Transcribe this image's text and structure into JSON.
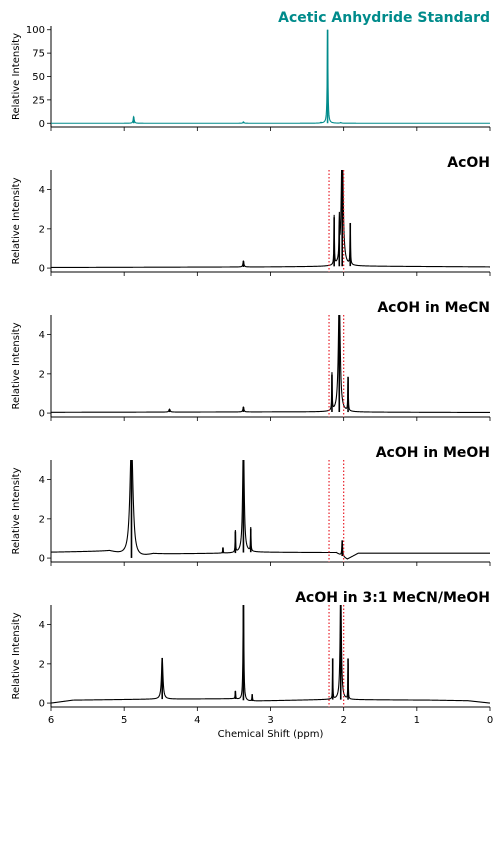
{
  "chart_data": [
    {
      "type": "line",
      "title": "Acetic Anhydride Standard",
      "title_color": "#008b8b",
      "line_color": "#008b8b",
      "ylabel": "Relative Intensity",
      "xlim": [
        6,
        0
      ],
      "ylim": [
        -4,
        104
      ],
      "yticks": [
        0,
        25,
        50,
        75,
        100
      ],
      "xticks": [
        6,
        5,
        4,
        3,
        2,
        1,
        0
      ],
      "show_xticklabels": false,
      "reference_lines": [],
      "baseline": [
        [
          6,
          0
        ],
        [
          0,
          0
        ]
      ],
      "peaks": [
        {
          "x": 4.87,
          "height": 7,
          "width": 0.008
        },
        {
          "x": 3.37,
          "height": 1.5,
          "width": 0.008
        },
        {
          "x": 2.22,
          "height": 100,
          "width": 0.006
        },
        {
          "x": 2.31,
          "height": 0.6,
          "width": 0.006
        },
        {
          "x": 2.04,
          "height": 0.7,
          "width": 0.01
        }
      ]
    },
    {
      "type": "line",
      "title": "AcOH",
      "title_color": "#000000",
      "line_color": "#000000",
      "ylabel": "Relative Intensity",
      "xlim": [
        6,
        0
      ],
      "ylim": [
        -0.2,
        5
      ],
      "yticks": [
        0,
        2,
        4
      ],
      "xticks": [
        6,
        5,
        4,
        3,
        2,
        1,
        0
      ],
      "show_xticklabels": false,
      "reference_lines": [
        2.2,
        2.0
      ],
      "baseline": [
        [
          6,
          0.03
        ],
        [
          3,
          0.06
        ],
        [
          2.3,
          0.08
        ],
        [
          1.9,
          0.1
        ],
        [
          0,
          0.06
        ]
      ],
      "peaks": [
        {
          "x": 3.37,
          "height": 0.3,
          "width": 0.008
        },
        {
          "x": 2.13,
          "height": 2.5,
          "width": 0.004
        },
        {
          "x": 2.02,
          "height": 6.5,
          "width": 0.015
        },
        {
          "x": 2.06,
          "height": 2.1,
          "width": 0.004
        },
        {
          "x": 1.91,
          "height": 2.2,
          "width": 0.004
        }
      ]
    },
    {
      "type": "line",
      "title": "AcOH in MeCN",
      "title_color": "#000000",
      "line_color": "#000000",
      "ylabel": "Relative Intensity",
      "xlim": [
        6,
        0
      ],
      "ylim": [
        -0.2,
        5
      ],
      "yticks": [
        0,
        2,
        4
      ],
      "xticks": [
        6,
        5,
        4,
        3,
        2,
        1,
        0
      ],
      "show_xticklabels": false,
      "reference_lines": [
        2.2,
        2.0
      ],
      "baseline": [
        [
          6,
          0.04
        ],
        [
          3,
          0.06
        ],
        [
          2.3,
          0.06
        ],
        [
          1.9,
          0.05
        ],
        [
          0,
          0.03
        ]
      ],
      "peaks": [
        {
          "x": 4.38,
          "height": 0.15,
          "width": 0.01
        },
        {
          "x": 3.37,
          "height": 0.25,
          "width": 0.008
        },
        {
          "x": 2.16,
          "height": 1.9,
          "width": 0.004
        },
        {
          "x": 2.06,
          "height": 6.0,
          "width": 0.015
        },
        {
          "x": 1.94,
          "height": 1.8,
          "width": 0.004
        }
      ]
    },
    {
      "type": "line",
      "title": "AcOH in MeOH",
      "title_color": "#000000",
      "line_color": "#000000",
      "ylabel": "Relative Intensity",
      "xlim": [
        6,
        0
      ],
      "ylim": [
        -0.2,
        5
      ],
      "yticks": [
        0,
        2,
        4
      ],
      "xticks": [
        6,
        5,
        4,
        3,
        2,
        1,
        0
      ],
      "show_xticklabels": false,
      "reference_lines": [
        2.2,
        2.0
      ],
      "baseline": [
        [
          6,
          0.3
        ],
        [
          5.2,
          0.35
        ],
        [
          4.85,
          -0.05
        ],
        [
          4.6,
          0.2
        ],
        [
          3.5,
          0.25
        ],
        [
          3.3,
          0.3
        ],
        [
          2.1,
          0.28
        ],
        [
          1.95,
          -0.05
        ],
        [
          1.8,
          0.25
        ],
        [
          0.3,
          0.25
        ],
        [
          0,
          0.25
        ]
      ],
      "peaks": [
        {
          "x": 4.9,
          "height": 6.0,
          "width": 0.025
        },
        {
          "x": 3.65,
          "height": 0.3,
          "width": 0.004
        },
        {
          "x": 3.48,
          "height": 1.1,
          "width": 0.004
        },
        {
          "x": 3.37,
          "height": 6.0,
          "width": 0.012
        },
        {
          "x": 3.27,
          "height": 1.2,
          "width": 0.004
        },
        {
          "x": 2.02,
          "height": 0.8,
          "width": 0.006
        }
      ]
    },
    {
      "type": "line",
      "title": "AcOH in 3:1 MeCN/MeOH",
      "title_color": "#000000",
      "line_color": "#000000",
      "ylabel": "Relative Intensity",
      "xlabel": "Chemical Shift (ppm)",
      "xlim": [
        6,
        0
      ],
      "ylim": [
        -0.2,
        5
      ],
      "yticks": [
        0,
        2,
        4
      ],
      "xticks": [
        6,
        5,
        4,
        3,
        2,
        1,
        0
      ],
      "show_xticklabels": true,
      "reference_lines": [
        2.2,
        2.0
      ],
      "baseline": [
        [
          6,
          0.0
        ],
        [
          5.7,
          0.15
        ],
        [
          4.6,
          0.2
        ],
        [
          3.5,
          0.22
        ],
        [
          3.3,
          0.1
        ],
        [
          2.2,
          0.18
        ],
        [
          0.8,
          0.15
        ],
        [
          0.3,
          0.12
        ],
        [
          0,
          0.0
        ]
      ],
      "peaks": [
        {
          "x": 4.48,
          "height": 2.1,
          "width": 0.012
        },
        {
          "x": 3.48,
          "height": 0.4,
          "width": 0.004
        },
        {
          "x": 3.37,
          "height": 6.0,
          "width": 0.006
        },
        {
          "x": 3.25,
          "height": 0.35,
          "width": 0.004
        },
        {
          "x": 2.15,
          "height": 2.1,
          "width": 0.003
        },
        {
          "x": 2.04,
          "height": 6.0,
          "width": 0.01
        },
        {
          "x": 1.94,
          "height": 2.1,
          "width": 0.003
        }
      ]
    }
  ]
}
